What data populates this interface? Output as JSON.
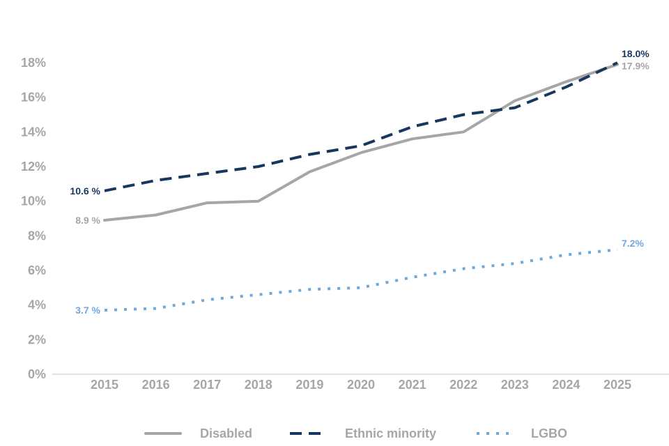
{
  "chart_data": {
    "type": "line",
    "title": "",
    "xlabel": "",
    "ylabel": "",
    "categories": [
      "2015",
      "2016",
      "2017",
      "2018",
      "2019",
      "2020",
      "2021",
      "2022",
      "2023",
      "2024",
      "2025"
    ],
    "ylim": [
      0,
      18
    ],
    "yticks": [
      0,
      2,
      4,
      6,
      8,
      10,
      12,
      14,
      16,
      18
    ],
    "ytick_labels": [
      "0%",
      "2%",
      "4%",
      "6%",
      "8%",
      "10%",
      "12%",
      "14%",
      "16%",
      "18%"
    ],
    "grid": false,
    "legend_position": "bottom",
    "series": [
      {
        "key": "disabled",
        "name": "Disabled",
        "color": "#a6a6a6",
        "style": "solid",
        "values": [
          8.9,
          9.2,
          9.9,
          10.0,
          11.7,
          12.8,
          13.6,
          14.0,
          15.8,
          16.9,
          17.9
        ],
        "start_label": "8.9 %",
        "end_label": "17.9%"
      },
      {
        "key": "ethnic",
        "name": "Ethnic minority",
        "color": "#17375e",
        "style": "dashed",
        "values": [
          10.6,
          11.2,
          11.6,
          12.0,
          12.7,
          13.2,
          14.3,
          15.0,
          15.4,
          16.6,
          18.0
        ],
        "start_label": "10.6 %",
        "end_label": "18.0%"
      },
      {
        "key": "lgbo",
        "name": "LGBO",
        "color": "#6fa8dc",
        "style": "dotted",
        "values": [
          3.7,
          3.8,
          4.3,
          4.6,
          4.9,
          5.0,
          5.6,
          6.1,
          6.4,
          6.9,
          7.2
        ],
        "start_label": "3.7 %",
        "end_label": "7.2%"
      }
    ]
  }
}
